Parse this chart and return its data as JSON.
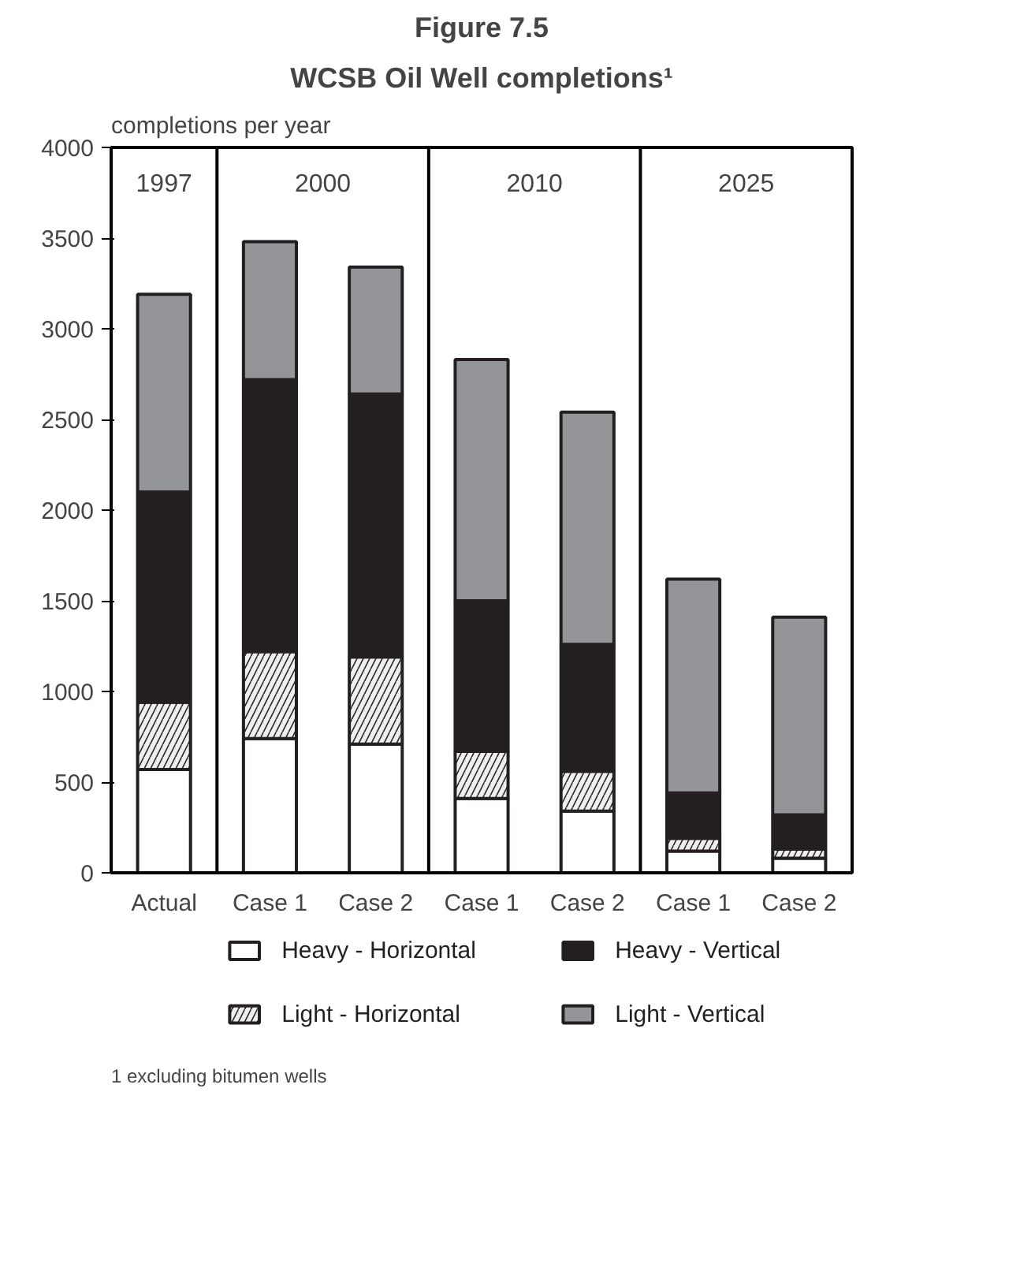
{
  "chart_data": {
    "type": "bar",
    "title": "Figure 7.5",
    "subtitle": "WCSB Oil Well completions¹",
    "ylabel": "completions per year",
    "categories": [
      "Actual",
      "Case 1",
      "Case 2",
      "Case 1",
      "Case 2",
      "Case 1",
      "Case 2"
    ],
    "stacked": true,
    "ylim": [
      0,
      4000
    ],
    "yticks": [
      0,
      500,
      1000,
      1500,
      2000,
      2500,
      3000,
      3500,
      4000
    ],
    "grid": false,
    "legend": "bottom",
    "series": [
      {
        "name": "Heavy - Horizontal",
        "color": "#ffffff",
        "values": [
          570,
          740,
          710,
          410,
          340,
          120,
          80
        ]
      },
      {
        "name": "Light - Horizontal",
        "color": "#eeeeee",
        "values": [
          370,
          480,
          480,
          260,
          220,
          70,
          50
        ]
      },
      {
        "name": "Heavy - Vertical",
        "color": "#231f20",
        "values": [
          1160,
          1500,
          1450,
          830,
          700,
          250,
          190
        ]
      },
      {
        "name": "Light - Vertical",
        "color": "#939598",
        "values": [
          1090,
          760,
          700,
          1330,
          1280,
          1180,
          1090
        ]
      }
    ],
    "annotations": [
      "1997",
      "2000",
      "2010",
      "2025",
      "1   excluding bitumen wells"
    ]
  }
}
